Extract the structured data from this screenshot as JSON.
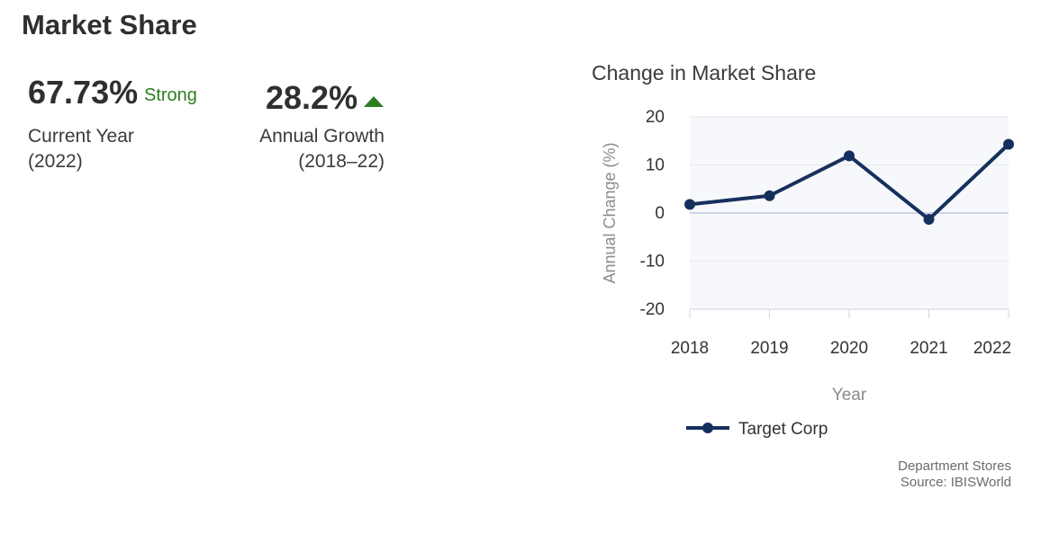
{
  "header": {
    "title": "Market Share"
  },
  "metrics": {
    "current": {
      "value": "67.73%",
      "qualifier": "Strong",
      "caption_line1": "Current Year",
      "caption_line2": "(2022)"
    },
    "growth": {
      "value": "28.2%",
      "caption_line1": "Annual Growth",
      "caption_line2": "(2018–22)",
      "trend_icon": "triangle-up-icon",
      "trend_color": "#2e7d1f"
    }
  },
  "chart_data": {
    "type": "line",
    "title": "Change in Market Share",
    "xlabel": "Year",
    "ylabel": "Annual Change (%)",
    "categories": [
      "2018",
      "2019",
      "2020",
      "2021",
      "2022"
    ],
    "series": [
      {
        "name": "Target Corp",
        "values": [
          1.8,
          3.6,
          11.9,
          -1.3,
          14.3
        ],
        "color": "#16305e"
      }
    ],
    "ylim": [
      -20,
      20
    ],
    "yticks": [
      20,
      10,
      0,
      -10,
      -20
    ],
    "ytick_labels": [
      "20",
      "10",
      "0",
      "-10",
      "-20"
    ],
    "grid": true,
    "legend": "bottom"
  },
  "footer": {
    "line1": "Department Stores",
    "line2": "Source: IBISWorld"
  }
}
